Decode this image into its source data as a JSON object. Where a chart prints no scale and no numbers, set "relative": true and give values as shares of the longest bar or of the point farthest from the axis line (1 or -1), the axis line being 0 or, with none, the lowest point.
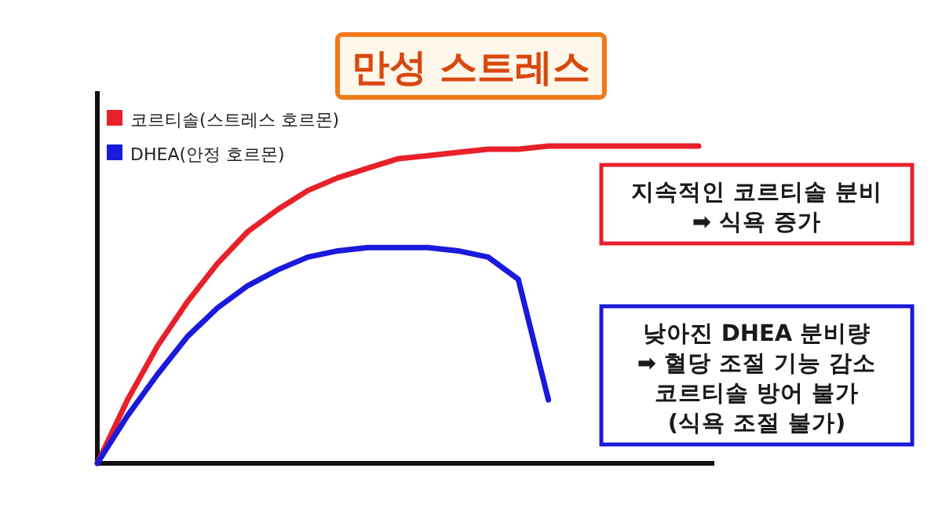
{
  "chart_data": {
    "type": "line",
    "title": "만성 스트레스",
    "relative": true,
    "legend": "top left",
    "categories": [
      null,
      null,
      null,
      null,
      null,
      null,
      null,
      null,
      null,
      null,
      null,
      null,
      null,
      null,
      null,
      null,
      null,
      null,
      null,
      null,
      null
    ],
    "series": [
      {
        "name": "코르티솔(스트레스 호르몬)",
        "color": "#e8202a",
        "values": [
          0,
          0.2,
          0.37,
          0.51,
          0.63,
          0.73,
          0.8,
          0.86,
          0.9,
          0.93,
          0.96,
          0.97,
          0.98,
          0.99,
          0.99,
          1,
          1,
          1,
          1,
          1,
          1
        ]
      },
      {
        "name": "DHEA(안정 호르몬)",
        "color": "#1a1adc",
        "values": [
          0,
          0.15,
          0.28,
          0.4,
          0.49,
          0.56,
          0.61,
          0.65,
          0.67,
          0.68,
          0.68,
          0.68,
          0.67,
          0.65,
          0.58,
          0.2,
          null,
          null,
          null,
          null,
          null
        ]
      }
    ],
    "annotations": [
      "지속적인 코르티솔 분비\n➡ 식욕 증가",
      "낮아진 DHEA 분비량\n➡ 혈당 조절 기능 감소\n코르티솔 방어 불가\n(식욕 조절 불가)"
    ]
  }
}
